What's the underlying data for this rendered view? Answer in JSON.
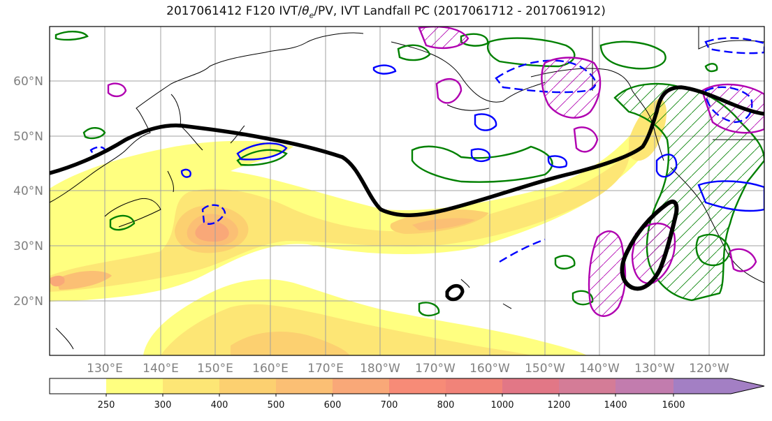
{
  "title": {
    "prefix": "2017061412 F120 IVT/",
    "theta": "θ",
    "theta_sub": "e",
    "suffix": "/PV, IVT Landfall PC (2017061712 - 2017061912)"
  },
  "map": {
    "lat_labels": [
      "60°N",
      "50°N",
      "40°N",
      "30°N",
      "20°N"
    ],
    "lon_labels": [
      "130°E",
      "140°E",
      "150°E",
      "160°E",
      "170°E",
      "180°W",
      "170°W",
      "160°W",
      "150°W",
      "140°W",
      "130°W",
      "120°W"
    ],
    "extent": {
      "lon_min": 120,
      "lon_max": 250,
      "lat_min": 10,
      "lat_max": 70
    },
    "colors": {
      "theta_e_contour": "#000000",
      "pv_positive": "#0000ff",
      "landfall_pc": "#008000",
      "pc_hatch": "#b000b0",
      "coastline": "#000000",
      "grid": "#a0a0a0"
    }
  },
  "colorbar": {
    "ticks": [
      "250",
      "300",
      "400",
      "500",
      "600",
      "700",
      "800",
      "1000",
      "1200",
      "1400",
      "1600"
    ],
    "colors": [
      "#ffffff",
      "#ffff80",
      "#fde675",
      "#fcd070",
      "#fbbf74",
      "#f9a878",
      "#f78b77",
      "#f18379",
      "#e27786",
      "#d47c97",
      "#a37fc4"
    ],
    "extend": "max"
  }
}
